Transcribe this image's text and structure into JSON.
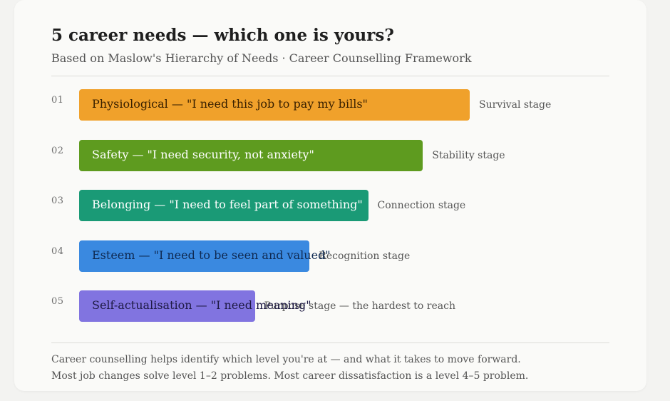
{
  "title": "5 career needs — which one is yours?",
  "subtitle": "Based on Maslow's Hierarchy of Needs · Career Counselling Framework",
  "chart_data": {
    "type": "bar",
    "orientation": "horizontal",
    "title": "5 career needs — which one is yours?",
    "subtitle": "Based on Maslow's Hierarchy of Needs · Career Counselling Framework",
    "categories": [
      "01",
      "02",
      "03",
      "04",
      "05"
    ],
    "labels": [
      "Physiological — \"I need this job to pay my bills\"",
      "Safety — \"I need security, not anxiety\"",
      "Belonging — \"I need to feel part of something\"",
      "Esteem — \"I need to be seen and valued\"",
      "Self-actualisation — \"I need meaning\""
    ],
    "stages": [
      "Survival stage",
      "Stability stage",
      "Connection stage",
      "Recognition stage",
      "Purpose stage — the hardest to reach"
    ],
    "values": [
      100,
      88,
      74,
      59,
      45
    ],
    "colors": [
      "#f0a12b",
      "#5e9b1f",
      "#1a9a76",
      "#3a89e0",
      "#8174e0"
    ],
    "text_colors": [
      "#3a2100",
      "#ffffff",
      "#ffffff",
      "#0f2a52",
      "#1e1a44"
    ],
    "xlim": [
      0,
      100
    ],
    "grid": false,
    "legend": "none"
  },
  "footer": {
    "line1": "Career counselling helps identify which level you're at — and what it takes to move forward.",
    "line2": "Most job changes solve level 1–2 problems. Most career dissatisfaction is a level 4–5 problem."
  }
}
